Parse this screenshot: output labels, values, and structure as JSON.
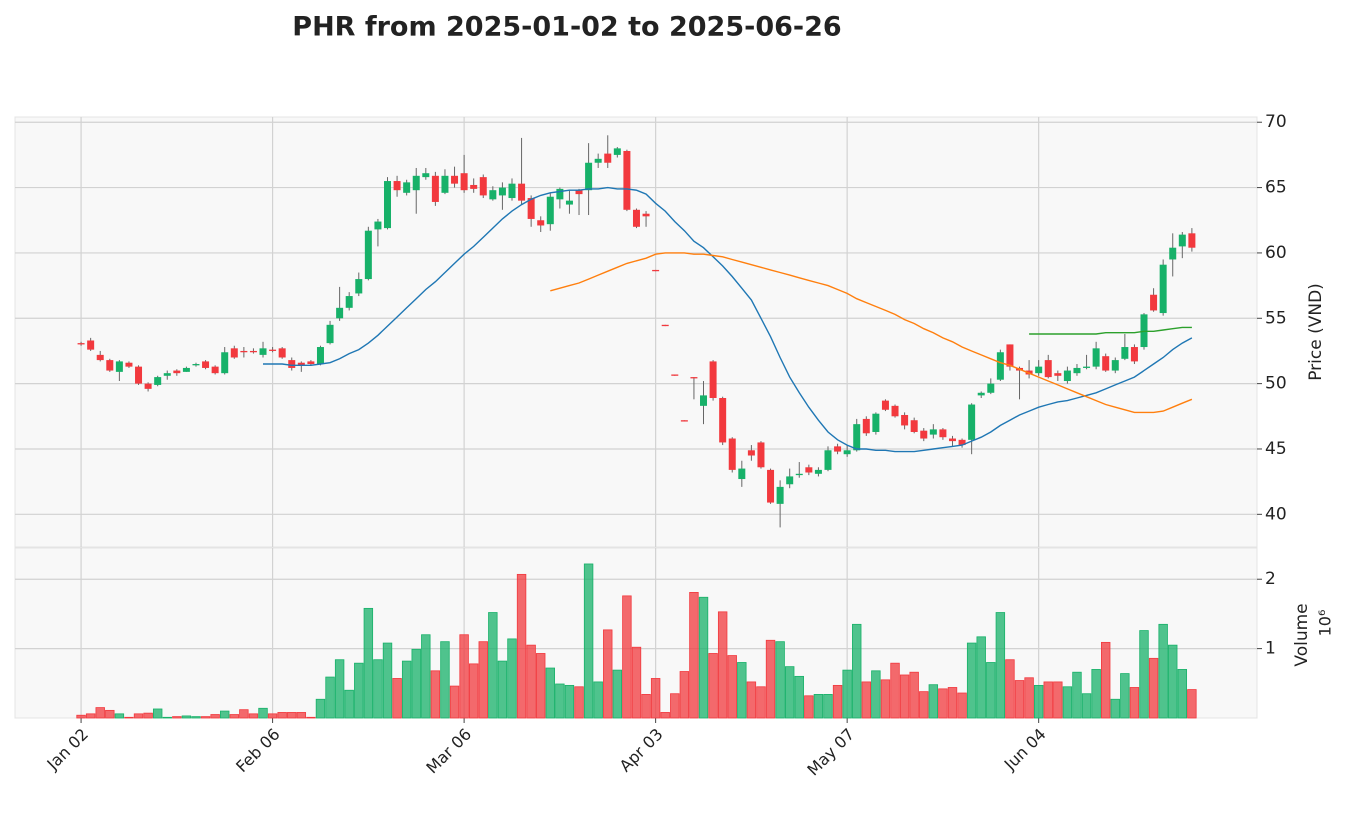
{
  "chart_data": {
    "type": "candlestick",
    "title": "PHR from 2025-01-02 to 2025-06-26",
    "y_label": "Price (VND)",
    "volume_label": "Volume",
    "volume_offset_label": "10⁶",
    "categories": [
      "Jan 02",
      null,
      null,
      null,
      null,
      null,
      null,
      null,
      null,
      null,
      null,
      null,
      null,
      null,
      null,
      null,
      null,
      null,
      null,
      null,
      "Feb 06",
      null,
      null,
      null,
      null,
      null,
      null,
      null,
      null,
      null,
      null,
      null,
      null,
      null,
      null,
      null,
      null,
      null,
      null,
      null,
      "Mar 06",
      null,
      null,
      null,
      null,
      null,
      null,
      null,
      null,
      null,
      null,
      null,
      null,
      null,
      null,
      null,
      null,
      null,
      null,
      null,
      "Apr 03",
      null,
      null,
      null,
      null,
      null,
      null,
      null,
      null,
      null,
      null,
      null,
      null,
      null,
      null,
      null,
      null,
      null,
      null,
      null,
      "May 07",
      null,
      null,
      null,
      null,
      null,
      null,
      null,
      null,
      null,
      null,
      null,
      null,
      null,
      null,
      null,
      null,
      null,
      null,
      null,
      "Jun 04",
      null,
      null,
      null,
      null,
      null,
      null,
      null,
      null,
      null,
      null,
      null,
      null,
      null,
      null,
      null,
      null
    ],
    "xlim": [
      -6.9,
      122.8
    ],
    "open": [
      53.1,
      53.3,
      52.2,
      51.8,
      50.9,
      51.6,
      51.3,
      50.0,
      49.9,
      50.6,
      51.0,
      50.9,
      51.4,
      51.7,
      51.3,
      50.8,
      52.7,
      52.5,
      52.5,
      52.2,
      52.6,
      52.7,
      51.8,
      51.6,
      51.7,
      51.5,
      53.1,
      55.0,
      55.8,
      56.9,
      58.0,
      61.8,
      61.9,
      65.5,
      64.6,
      64.8,
      65.8,
      65.9,
      64.6,
      65.9,
      66.1,
      65.2,
      65.8,
      64.1,
      64.4,
      64.2,
      65.3,
      64.2,
      62.5,
      62.2,
      64.1,
      63.7,
      64.8,
      64.8,
      66.9,
      67.6,
      67.5,
      67.8,
      63.3,
      63.0,
      58.7,
      54.5,
      50.7,
      47.2,
      50.5,
      48.3,
      51.7,
      48.9,
      45.8,
      42.7,
      44.9,
      45.5,
      43.4,
      40.8,
      42.3,
      43.0,
      43.6,
      43.1,
      43.4,
      45.2,
      44.6,
      44.9,
      47.3,
      46.3,
      48.7,
      48.3,
      47.6,
      47.2,
      46.4,
      46.1,
      46.5,
      45.8,
      45.7,
      45.7,
      49.1,
      49.3,
      50.3,
      53.0,
      51.2,
      51.0,
      50.8,
      51.8,
      50.8,
      50.2,
      50.8,
      51.2,
      51.3,
      52.1,
      51.0,
      51.9,
      52.8,
      52.8,
      56.8,
      55.4,
      59.5,
      60.5,
      61.5
    ],
    "high": [
      53.2,
      53.5,
      52.5,
      51.9,
      51.8,
      51.7,
      51.4,
      50.1,
      50.6,
      51.0,
      51.1,
      51.3,
      51.6,
      51.8,
      51.4,
      52.8,
      52.9,
      52.8,
      52.7,
      53.2,
      52.8,
      52.8,
      52.0,
      51.7,
      51.8,
      52.9,
      54.8,
      57.4,
      57.0,
      58.5,
      62.0,
      62.6,
      65.8,
      65.9,
      65.6,
      66.5,
      66.5,
      66.2,
      66.4,
      66.6,
      67.5,
      65.7,
      66.0,
      65.1,
      65.4,
      65.7,
      68.8,
      64.4,
      62.8,
      64.6,
      65.0,
      64.8,
      64.9,
      68.4,
      67.6,
      69.0,
      68.1,
      67.9,
      63.4,
      63.2,
      58.7,
      54.5,
      50.7,
      47.2,
      50.5,
      50.2,
      51.8,
      49.0,
      45.9,
      44.1,
      45.3,
      45.6,
      43.5,
      42.6,
      43.5,
      44.0,
      43.8,
      43.6,
      45.2,
      45.4,
      45.3,
      47.3,
      47.5,
      47.8,
      48.8,
      48.4,
      47.8,
      47.4,
      46.6,
      46.9,
      46.6,
      46.0,
      45.8,
      48.5,
      49.4,
      50.4,
      52.6,
      53.0,
      51.3,
      51.8,
      51.8,
      52.2,
      51.0,
      51.3,
      51.5,
      52.2,
      53.2,
      52.3,
      52.0,
      53.8,
      53.0,
      55.4,
      57.3,
      59.5,
      61.5,
      61.6,
      61.9
    ],
    "low": [
      52.9,
      52.5,
      51.7,
      50.9,
      50.2,
      51.2,
      49.9,
      49.4,
      49.8,
      50.3,
      50.6,
      50.9,
      51.3,
      51.1,
      50.7,
      50.7,
      51.9,
      52.0,
      52.3,
      52.0,
      52.4,
      51.9,
      51.0,
      50.9,
      51.4,
      51.4,
      53.0,
      54.8,
      55.6,
      56.7,
      57.9,
      60.5,
      61.8,
      64.3,
      64.4,
      63.0,
      65.6,
      63.6,
      64.5,
      65.0,
      64.6,
      64.6,
      64.2,
      64.0,
      63.3,
      64.0,
      63.7,
      62.0,
      61.6,
      61.7,
      63.4,
      63.0,
      62.9,
      62.9,
      66.5,
      66.5,
      67.3,
      63.2,
      61.9,
      62.0,
      58.6,
      54.4,
      50.6,
      47.1,
      48.8,
      46.9,
      48.7,
      45.3,
      43.2,
      42.1,
      44.1,
      43.5,
      40.8,
      39.0,
      42.0,
      42.8,
      43.0,
      42.9,
      43.3,
      44.6,
      44.4,
      44.8,
      46.0,
      46.1,
      47.9,
      47.4,
      46.5,
      46.2,
      45.6,
      45.8,
      45.7,
      45.2,
      45.1,
      44.6,
      48.9,
      49.2,
      50.2,
      51.0,
      48.8,
      50.4,
      50.6,
      50.4,
      50.2,
      50.0,
      50.6,
      51.1,
      51.1,
      50.9,
      50.8,
      51.8,
      51.5,
      52.6,
      55.5,
      55.2,
      58.2,
      59.6,
      60.1
    ],
    "close": [
      53.0,
      52.6,
      51.8,
      51.0,
      51.7,
      51.3,
      50.0,
      49.6,
      50.5,
      50.8,
      50.8,
      51.2,
      51.5,
      51.2,
      50.8,
      52.4,
      52.0,
      52.4,
      52.4,
      52.7,
      52.5,
      52.0,
      51.2,
      51.4,
      51.5,
      52.8,
      54.5,
      55.8,
      56.7,
      58.0,
      61.7,
      62.4,
      65.5,
      64.8,
      65.4,
      65.9,
      66.1,
      63.9,
      65.9,
      65.3,
      64.8,
      64.9,
      64.4,
      64.8,
      65.0,
      65.3,
      64.0,
      62.6,
      62.1,
      64.3,
      64.9,
      64.0,
      64.5,
      66.9,
      67.2,
      66.9,
      68.0,
      63.3,
      62.0,
      62.8,
      58.6,
      54.4,
      50.6,
      47.1,
      50.4,
      49.1,
      48.9,
      45.5,
      43.4,
      43.5,
      44.5,
      43.6,
      40.9,
      42.1,
      42.9,
      43.1,
      43.2,
      43.4,
      44.9,
      44.8,
      44.9,
      46.9,
      46.2,
      47.7,
      48.0,
      47.5,
      46.8,
      46.3,
      45.8,
      46.5,
      45.9,
      45.6,
      45.3,
      48.4,
      49.3,
      50.0,
      52.4,
      51.3,
      51.0,
      50.7,
      51.3,
      50.5,
      50.6,
      51.0,
      51.2,
      51.3,
      52.7,
      51.0,
      51.8,
      52.8,
      51.7,
      55.3,
      55.6,
      59.1,
      60.4,
      61.4,
      60.4
    ],
    "volume": [
      0.04,
      0.06,
      0.15,
      0.11,
      0.06,
      0.01,
      0.06,
      0.07,
      0.13,
      0.01,
      0.02,
      0.03,
      0.02,
      0.02,
      0.05,
      0.1,
      0.05,
      0.12,
      0.06,
      0.14,
      0.06,
      0.08,
      0.08,
      0.08,
      0.01,
      0.27,
      0.59,
      0.84,
      0.4,
      0.79,
      1.58,
      0.84,
      1.08,
      0.57,
      0.82,
      0.99,
      1.2,
      0.68,
      1.1,
      0.46,
      1.2,
      0.78,
      1.1,
      1.52,
      0.82,
      1.14,
      2.07,
      1.05,
      0.93,
      0.72,
      0.49,
      0.47,
      0.45,
      2.22,
      0.52,
      1.27,
      0.69,
      1.76,
      1.02,
      0.34,
      0.57,
      0.08,
      0.35,
      0.67,
      1.81,
      1.74,
      0.93,
      1.53,
      0.9,
      0.8,
      0.52,
      0.45,
      1.12,
      1.1,
      0.74,
      0.6,
      0.32,
      0.34,
      0.34,
      0.47,
      0.69,
      1.35,
      0.52,
      0.68,
      0.55,
      0.79,
      0.62,
      0.66,
      0.38,
      0.48,
      0.42,
      0.44,
      0.36,
      1.08,
      1.17,
      0.8,
      1.52,
      0.84,
      0.54,
      0.58,
      0.47,
      0.52,
      0.52,
      0.45,
      0.66,
      0.35,
      0.7,
      1.09,
      0.27,
      0.64,
      0.44,
      1.26,
      0.86,
      1.35,
      1.05,
      0.7,
      0.41
    ],
    "moving_averages": [
      {
        "color": "#1f77b4",
        "values": [
          null,
          null,
          null,
          null,
          null,
          null,
          null,
          null,
          null,
          null,
          null,
          null,
          null,
          null,
          null,
          null,
          null,
          null,
          null,
          51.5,
          51.5,
          51.5,
          51.4,
          51.4,
          51.4,
          51.5,
          51.6,
          51.9,
          52.3,
          52.6,
          53.1,
          53.7,
          54.4,
          55.1,
          55.8,
          56.5,
          57.2,
          57.8,
          58.5,
          59.2,
          59.9,
          60.5,
          61.2,
          61.9,
          62.6,
          63.2,
          63.7,
          64.1,
          64.4,
          64.6,
          64.7,
          64.8,
          64.8,
          64.9,
          64.9,
          65.0,
          64.9,
          64.9,
          64.8,
          64.5,
          63.8,
          63.2,
          62.4,
          61.7,
          60.9,
          60.4,
          59.7,
          59.0,
          58.2,
          57.3,
          56.4,
          55.0,
          53.6,
          52.0,
          50.5,
          49.3,
          48.2,
          47.2,
          46.3,
          45.7,
          45.3,
          45.0,
          45.0,
          44.9,
          44.9,
          44.8,
          44.8,
          44.8,
          44.9,
          45.0,
          45.1,
          45.2,
          45.3,
          45.6,
          45.9,
          46.3,
          46.8,
          47.2,
          47.6,
          47.9,
          48.2,
          48.4,
          48.6,
          48.7,
          48.9,
          49.1,
          49.3,
          49.6,
          49.9,
          50.2,
          50.5,
          51.0,
          51.5,
          52.0,
          52.6,
          53.1,
          53.5
        ]
      },
      {
        "color": "#ff7f0e",
        "values": [
          null,
          null,
          null,
          null,
          null,
          null,
          null,
          null,
          null,
          null,
          null,
          null,
          null,
          null,
          null,
          null,
          null,
          null,
          null,
          null,
          null,
          null,
          null,
          null,
          null,
          null,
          null,
          null,
          null,
          null,
          null,
          null,
          null,
          null,
          null,
          null,
          null,
          null,
          null,
          null,
          null,
          null,
          null,
          null,
          null,
          null,
          null,
          null,
          null,
          57.1,
          57.3,
          57.5,
          57.7,
          58.0,
          58.3,
          58.6,
          58.9,
          59.2,
          59.4,
          59.6,
          59.9,
          60.0,
          60.0,
          60.0,
          59.9,
          59.9,
          59.8,
          59.7,
          59.5,
          59.3,
          59.1,
          58.9,
          58.7,
          58.5,
          58.3,
          58.1,
          57.9,
          57.7,
          57.5,
          57.2,
          56.9,
          56.5,
          56.2,
          55.9,
          55.6,
          55.3,
          54.9,
          54.6,
          54.2,
          53.9,
          53.5,
          53.2,
          52.8,
          52.5,
          52.2,
          51.9,
          51.6,
          51.4,
          51.1,
          50.8,
          50.5,
          50.2,
          49.9,
          49.6,
          49.3,
          49.0,
          48.7,
          48.4,
          48.2,
          48.0,
          47.8,
          47.8,
          47.8,
          47.9,
          48.2,
          48.5,
          48.8
        ]
      },
      {
        "color": "#2ca02c",
        "values": [
          null,
          null,
          null,
          null,
          null,
          null,
          null,
          null,
          null,
          null,
          null,
          null,
          null,
          null,
          null,
          null,
          null,
          null,
          null,
          null,
          null,
          null,
          null,
          null,
          null,
          null,
          null,
          null,
          null,
          null,
          null,
          null,
          null,
          null,
          null,
          null,
          null,
          null,
          null,
          null,
          null,
          null,
          null,
          null,
          null,
          null,
          null,
          null,
          null,
          null,
          null,
          null,
          null,
          null,
          null,
          null,
          null,
          null,
          null,
          null,
          null,
          null,
          null,
          null,
          null,
          null,
          null,
          null,
          null,
          null,
          null,
          null,
          null,
          null,
          null,
          null,
          null,
          null,
          null,
          null,
          null,
          null,
          null,
          null,
          null,
          null,
          null,
          null,
          null,
          null,
          null,
          null,
          null,
          null,
          null,
          null,
          null,
          null,
          null,
          53.8,
          53.8,
          53.8,
          53.8,
          53.8,
          53.8,
          53.8,
          53.8,
          53.9,
          53.9,
          53.9,
          53.9,
          54.0,
          54.0,
          54.1,
          54.2,
          54.3,
          54.3
        ]
      }
    ],
    "up_color": "#17b169",
    "down_color": "#f2393e",
    "ylim": [
      37.5,
      70.4
    ],
    "yticks": [
      40,
      45,
      50,
      55,
      60,
      65,
      70
    ],
    "volume_ylim": [
      0,
      2.45
    ],
    "volume_yticks": [
      1,
      2
    ],
    "grid": true
  }
}
